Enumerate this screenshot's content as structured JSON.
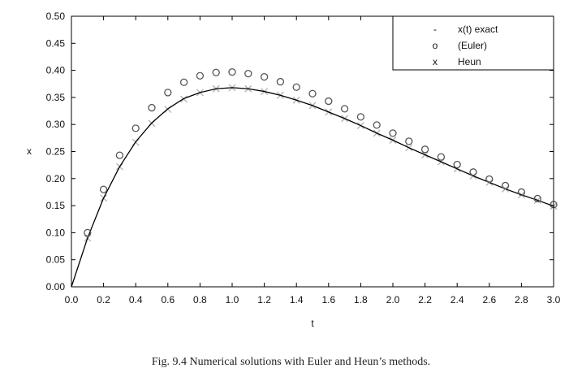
{
  "chart_data": {
    "type": "line",
    "xlabel": "t",
    "ylabel": "x",
    "xlim": [
      0.0,
      3.0
    ],
    "ylim": [
      0.0,
      0.5
    ],
    "xticks": [
      "0.0",
      "0.2",
      "0.4",
      "0.6",
      "0.8",
      "1.0",
      "1.2",
      "1.4",
      "1.6",
      "1.8",
      "2.0",
      "2.2",
      "2.4",
      "2.6",
      "2.8",
      "3.0"
    ],
    "yticks": [
      "0.00",
      "0.05",
      "0.10",
      "0.15",
      "0.20",
      "0.25",
      "0.30",
      "0.35",
      "0.40",
      "0.45",
      "0.50"
    ],
    "grid": false,
    "legend_position": "top-right",
    "series": [
      {
        "name": "x(t) exact",
        "marker": "-",
        "style": "line",
        "color": "#000000",
        "x": [
          0.0,
          0.1,
          0.2,
          0.3,
          0.4,
          0.5,
          0.6,
          0.7,
          0.8,
          0.9,
          1.0,
          1.1,
          1.2,
          1.3,
          1.4,
          1.5,
          1.6,
          1.7,
          1.8,
          1.9,
          2.0,
          2.1,
          2.2,
          2.3,
          2.4,
          2.5,
          2.6,
          2.7,
          2.8,
          2.9,
          3.0
        ],
        "y": [
          0.0,
          0.09,
          0.164,
          0.222,
          0.268,
          0.303,
          0.329,
          0.348,
          0.359,
          0.366,
          0.368,
          0.366,
          0.361,
          0.354,
          0.345,
          0.335,
          0.323,
          0.311,
          0.298,
          0.284,
          0.271,
          0.257,
          0.244,
          0.231,
          0.218,
          0.205,
          0.193,
          0.181,
          0.17,
          0.16,
          0.149
        ]
      },
      {
        "name": "(Euler)",
        "marker": "o",
        "style": "circle",
        "color": "#555555",
        "x": [
          0.1,
          0.2,
          0.3,
          0.4,
          0.5,
          0.6,
          0.7,
          0.8,
          0.9,
          1.0,
          1.1,
          1.2,
          1.3,
          1.4,
          1.5,
          1.6,
          1.7,
          1.8,
          1.9,
          2.0,
          2.1,
          2.2,
          2.3,
          2.4,
          2.5,
          2.6,
          2.7,
          2.8,
          2.9,
          3.0
        ],
        "y": [
          0.1,
          0.18,
          0.243,
          0.293,
          0.331,
          0.359,
          0.378,
          0.39,
          0.396,
          0.397,
          0.394,
          0.388,
          0.379,
          0.369,
          0.357,
          0.343,
          0.329,
          0.314,
          0.299,
          0.284,
          0.269,
          0.254,
          0.24,
          0.226,
          0.212,
          0.199,
          0.187,
          0.175,
          0.163,
          0.152
        ]
      },
      {
        "name": "Heun",
        "marker": "x",
        "style": "cross",
        "color": "#b0b0b0",
        "x": [
          0.1,
          0.2,
          0.3,
          0.4,
          0.5,
          0.6,
          0.7,
          0.8,
          0.9,
          1.0,
          1.1,
          1.2,
          1.3,
          1.4,
          1.5,
          1.6,
          1.7,
          1.8,
          1.9,
          2.0,
          2.1,
          2.2,
          2.3,
          2.4,
          2.5,
          2.6,
          2.7,
          2.8,
          2.9,
          3.0
        ],
        "y": [
          0.09,
          0.164,
          0.222,
          0.267,
          0.302,
          0.328,
          0.347,
          0.359,
          0.366,
          0.368,
          0.366,
          0.361,
          0.354,
          0.345,
          0.335,
          0.323,
          0.311,
          0.298,
          0.284,
          0.271,
          0.257,
          0.244,
          0.231,
          0.218,
          0.205,
          0.193,
          0.181,
          0.17,
          0.16,
          0.149
        ]
      }
    ]
  },
  "caption": "Fig. 9.4   Numerical solutions with Euler and Heun’s methods."
}
